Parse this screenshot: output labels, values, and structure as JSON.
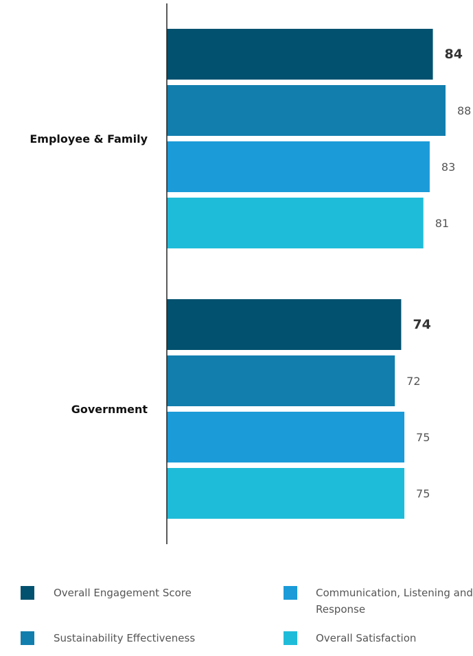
{
  "chart_data": {
    "type": "bar",
    "orientation": "horizontal",
    "categories": [
      "Employee & Family",
      "Government"
    ],
    "series": [
      {
        "name": "Overall Engagement Score",
        "color": "#02516f",
        "values": [
          84,
          74
        ],
        "label_bold": true
      },
      {
        "name": "Sustainability Effectiveness",
        "color": "#127ead",
        "values": [
          88,
          72
        ],
        "label_bold": false
      },
      {
        "name": "Communication, Listening and Response",
        "color": "#1b9bd8",
        "values": [
          83,
          75
        ],
        "label_bold": false
      },
      {
        "name": "Overall Satisfaction",
        "color": "#1fbcd9",
        "values": [
          81,
          75
        ],
        "label_bold": false
      }
    ],
    "title": "",
    "xlabel": "",
    "ylabel": "",
    "xlim": [
      0,
      88
    ],
    "grid": false,
    "legend_position": "bottom"
  },
  "legend": {
    "items": [
      {
        "label": "Overall Engagement Score",
        "color": "#02516f"
      },
      {
        "label": "Communication, Listening and Response",
        "color": "#1b9bd8"
      },
      {
        "label": "Sustainability Effectiveness",
        "color": "#127ead"
      },
      {
        "label": "Overall Satisfaction",
        "color": "#1fbcd9"
      }
    ]
  }
}
